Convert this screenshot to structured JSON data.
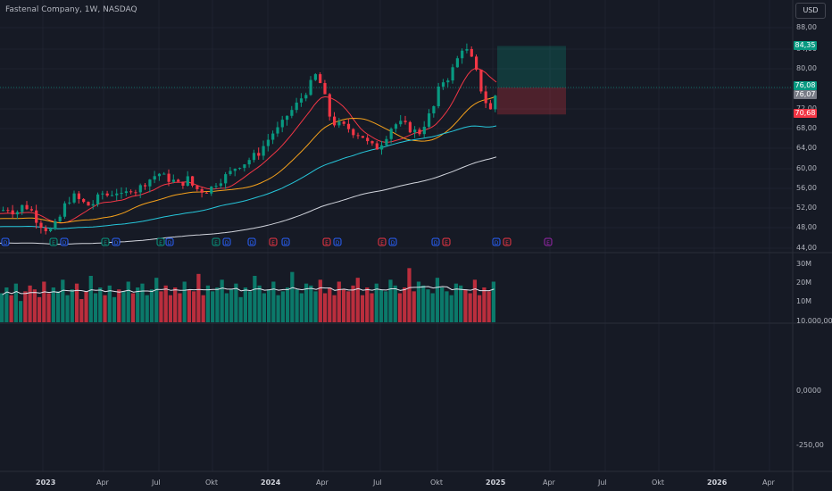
{
  "header": {
    "title": "Fastenal Company, 1W, NASDAQ",
    "currency": "USD"
  },
  "price_axis": [
    "88,00",
    "84,00",
    "80,00",
    "76,00",
    "72,00",
    "68,00",
    "64,00",
    "60,00",
    "56,00",
    "52,00",
    "48,00",
    "44,00"
  ],
  "price_tags": [
    {
      "value": "84,35",
      "color": "#089981"
    },
    {
      "value": "76,08",
      "color": "#089981"
    },
    {
      "value": "76,07",
      "color": "#787b86"
    },
    {
      "value": "70,68",
      "color": "#f23645"
    }
  ],
  "volume_axis": [
    "30M",
    "20M",
    "10M",
    "10.000,00"
  ],
  "indicator_axis": [
    "0,0000",
    "-250,00"
  ],
  "time_axis": [
    {
      "label": "2023",
      "bold": true
    },
    {
      "label": "Apr",
      "bold": false
    },
    {
      "label": "Jul",
      "bold": false
    },
    {
      "label": "Okt",
      "bold": false
    },
    {
      "label": "2024",
      "bold": true
    },
    {
      "label": "Apr",
      "bold": false
    },
    {
      "label": "Jul",
      "bold": false
    },
    {
      "label": "Okt",
      "bold": false
    },
    {
      "label": "2025",
      "bold": true
    },
    {
      "label": "Apr",
      "bold": false
    },
    {
      "label": "Jul",
      "bold": false
    },
    {
      "label": "Okt",
      "bold": false
    },
    {
      "label": "2026",
      "bold": true
    },
    {
      "label": "Apr",
      "bold": false
    }
  ],
  "events": [
    "D",
    "E",
    "D",
    "E",
    "D",
    "E",
    "D",
    "E",
    "D",
    "D",
    "E",
    "D",
    "E",
    "D",
    "E",
    "D",
    "D",
    "E",
    "D",
    "E",
    "E"
  ],
  "colors": {
    "up": "#089981",
    "down": "#f23645",
    "bg": "#161a25"
  },
  "chart_data": {
    "type": "candlestick",
    "title": "Fastenal Company, 1W, NASDAQ",
    "ylim": [
      44,
      88
    ],
    "key_levels": {
      "target": 84.35,
      "last": 76.08,
      "entry": 76.07,
      "stop": 70.68
    },
    "close_path": [
      [
        0,
        51.5
      ],
      [
        8,
        52.0
      ],
      [
        16,
        51.0
      ],
      [
        24,
        52.5
      ],
      [
        32,
        52.0
      ],
      [
        40,
        49.5
      ],
      [
        48,
        48.0
      ],
      [
        56,
        47.5
      ],
      [
        64,
        49.5
      ],
      [
        72,
        53.0
      ],
      [
        80,
        54.5
      ],
      [
        88,
        53.5
      ],
      [
        96,
        52.5
      ],
      [
        104,
        53.0
      ],
      [
        112,
        55.0
      ],
      [
        120,
        54.5
      ],
      [
        128,
        55.5
      ],
      [
        136,
        54.0
      ],
      [
        144,
        56.0
      ],
      [
        152,
        55.5
      ],
      [
        160,
        57.0
      ],
      [
        168,
        58.0
      ],
      [
        176,
        59.0
      ],
      [
        184,
        58.0
      ],
      [
        192,
        57.5
      ],
      [
        200,
        56.5
      ],
      [
        208,
        58.0
      ],
      [
        216,
        56.0
      ],
      [
        224,
        55.5
      ],
      [
        232,
        55.5
      ],
      [
        240,
        57.0
      ],
      [
        248,
        58.0
      ],
      [
        256,
        59.0
      ],
      [
        264,
        60.5
      ],
      [
        272,
        61.0
      ],
      [
        280,
        62.0
      ],
      [
        288,
        63.0
      ],
      [
        296,
        65.0
      ],
      [
        304,
        67.0
      ],
      [
        312,
        68.0
      ],
      [
        320,
        70.5
      ],
      [
        328,
        72.0
      ],
      [
        336,
        74.0
      ],
      [
        344,
        76.0
      ],
      [
        352,
        78.5
      ],
      [
        360,
        76.0
      ],
      [
        366,
        71.0
      ],
      [
        372,
        69.0
      ],
      [
        380,
        68.5
      ],
      [
        388,
        68.0
      ],
      [
        396,
        67.0
      ],
      [
        404,
        66.5
      ],
      [
        412,
        64.5
      ],
      [
        420,
        64.0
      ],
      [
        428,
        65.5
      ],
      [
        436,
        68.0
      ],
      [
        444,
        69.0
      ],
      [
        452,
        68.5
      ],
      [
        460,
        67.5
      ],
      [
        468,
        67.0
      ],
      [
        476,
        69.5
      ],
      [
        484,
        72.0
      ],
      [
        492,
        77.0
      ],
      [
        500,
        78.0
      ],
      [
        508,
        80.5
      ],
      [
        516,
        84.0
      ],
      [
        524,
        83.0
      ],
      [
        532,
        79.0
      ],
      [
        540,
        74.0
      ],
      [
        548,
        71.5
      ],
      [
        556,
        76.1
      ]
    ],
    "volume_series": [
      15,
      18,
      14,
      20,
      11,
      16,
      19,
      17,
      13,
      21,
      15,
      18,
      16,
      22,
      14,
      17,
      20,
      12,
      16,
      24,
      15,
      18,
      14,
      19,
      13,
      17,
      16,
      21,
      15,
      18,
      20,
      14,
      17,
      23,
      16,
      19,
      14,
      18,
      15,
      21,
      17,
      16,
      25,
      14,
      19,
      16,
      18,
      22,
      15,
      17,
      20,
      13,
      18,
      16,
      24,
      19,
      15,
      17,
      21,
      14,
      16,
      18,
      26,
      17,
      15,
      20,
      19,
      16,
      22,
      15,
      18,
      14,
      21,
      17,
      16,
      19,
      23,
      14,
      18,
      15,
      20,
      17,
      16,
      22,
      19,
      15,
      18,
      28,
      16,
      21,
      19,
      17,
      15,
      23,
      18,
      16,
      14,
      20,
      19,
      17,
      15,
      22,
      14,
      18,
      16,
      21
    ]
  }
}
